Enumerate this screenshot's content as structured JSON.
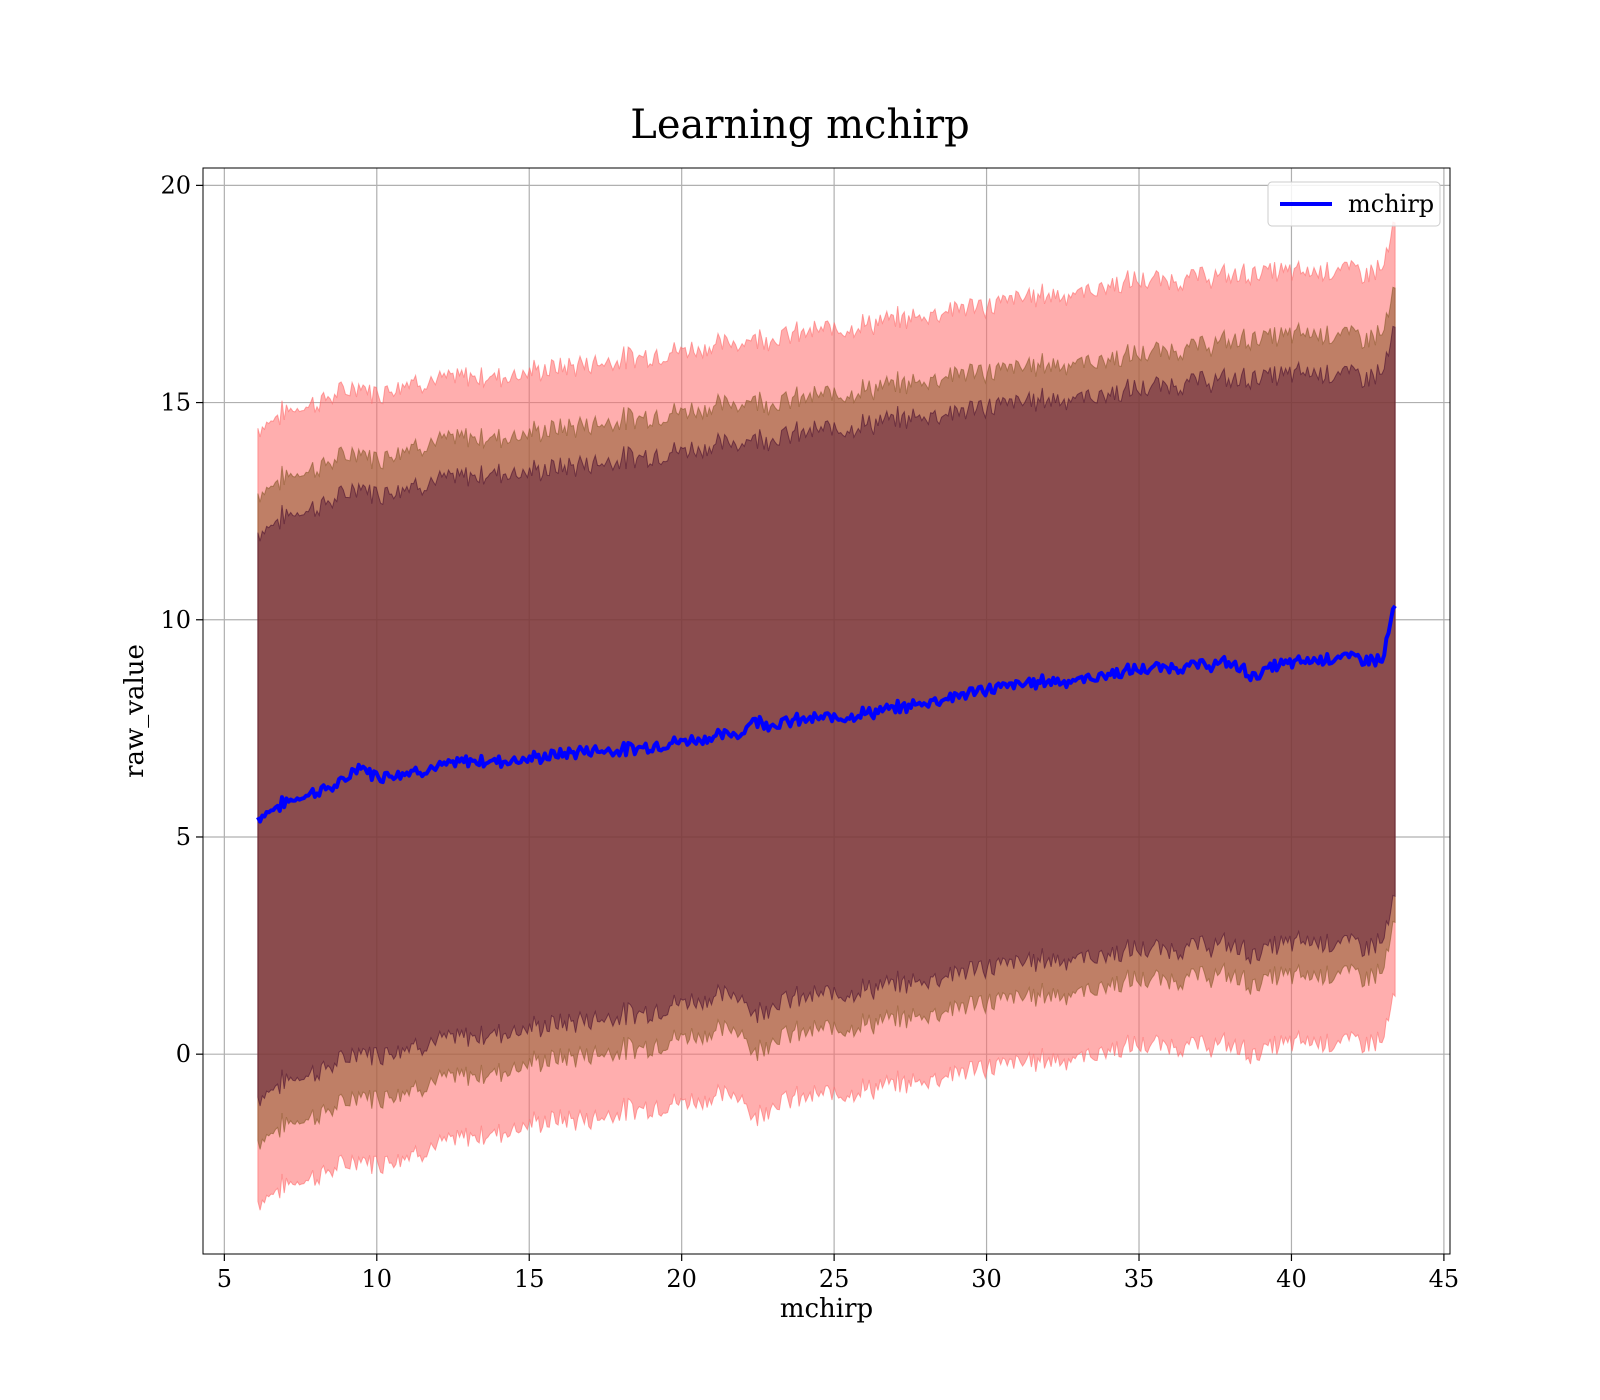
{
  "chart_data": {
    "type": "line",
    "title": "Learning mchirp",
    "xlabel": "mchirp",
    "ylabel": "raw_value",
    "xlim": [
      4.3,
      45.2
    ],
    "ylim": [
      -4.6,
      20.4
    ],
    "xticks": [
      5,
      10,
      15,
      20,
      25,
      30,
      35,
      40,
      45
    ],
    "yticks": [
      0,
      5,
      10,
      15,
      20
    ],
    "grid": true,
    "legend": {
      "position": "top-right",
      "entries": [
        "mchirp"
      ]
    },
    "colors": {
      "line": "#0000ff",
      "band_outer": "#ff6b6b",
      "band_middle": "#8b5a2b",
      "band_inner": "#4b1030"
    },
    "series": [
      {
        "name": "mchirp",
        "x": [
          6.1,
          7.0,
          8.0,
          8.8,
          9.4,
          10.0,
          11.0,
          12.0,
          13.0,
          14.0,
          15.0,
          16.0,
          17.0,
          18.0,
          19.0,
          20.0,
          21.0,
          22.0,
          22.3,
          23.0,
          24.0,
          25.0,
          26.0,
          27.0,
          28.0,
          29.0,
          30.0,
          31.0,
          32.0,
          33.0,
          34.0,
          35.0,
          36.0,
          37.0,
          38.0,
          38.8,
          39.5,
          40.5,
          41.5,
          42.5,
          43.0,
          43.2,
          43.4
        ],
        "y": [
          5.45,
          5.8,
          6.05,
          6.2,
          6.65,
          6.4,
          6.5,
          6.6,
          6.75,
          6.75,
          6.8,
          6.9,
          7.0,
          7.0,
          7.1,
          7.2,
          7.3,
          7.4,
          7.7,
          7.6,
          7.7,
          7.75,
          7.85,
          7.95,
          8.1,
          8.25,
          8.4,
          8.5,
          8.6,
          8.6,
          8.75,
          8.85,
          8.9,
          8.95,
          9.0,
          8.7,
          8.95,
          9.05,
          9.15,
          9.1,
          9.05,
          9.8,
          10.3
        ]
      }
    ],
    "bands": [
      {
        "level": "outer",
        "lower": [
          -3.4,
          -3.0,
          -2.8,
          -2.6,
          -2.4,
          -2.5,
          -2.3,
          -2.1,
          -1.9,
          -1.8,
          -1.6,
          -1.5,
          -1.5,
          -1.3,
          -1.2,
          -1.1,
          -1.0,
          -0.9,
          -1.5,
          -1.1,
          -1.0,
          -0.9,
          -0.8,
          -0.7,
          -0.6,
          -0.4,
          -0.3,
          -0.2,
          -0.1,
          -0.1,
          0.1,
          0.2,
          0.2,
          0.2,
          0.2,
          0.0,
          0.2,
          0.3,
          0.3,
          0.3,
          0.3,
          0.9,
          1.3
        ],
        "upper": [
          14.4,
          14.8,
          15.0,
          15.2,
          15.4,
          15.2,
          15.5,
          15.5,
          15.6,
          15.6,
          15.7,
          15.8,
          15.9,
          16.0,
          16.1,
          16.2,
          16.3,
          16.4,
          16.5,
          16.5,
          16.6,
          16.7,
          16.8,
          16.9,
          17.0,
          17.2,
          17.2,
          17.4,
          17.5,
          17.5,
          17.7,
          17.8,
          17.8,
          17.9,
          17.9,
          18.0,
          18.0,
          18.0,
          18.1,
          18.0,
          18.1,
          18.6,
          19.1
        ]
      },
      {
        "level": "middle",
        "lower": [
          -2.0,
          -1.6,
          -1.4,
          -1.2,
          -0.9,
          -1.0,
          -0.8,
          -0.6,
          -0.5,
          -0.4,
          -0.2,
          -0.1,
          0.0,
          0.1,
          0.2,
          0.4,
          0.5,
          0.6,
          0.0,
          0.4,
          0.5,
          0.6,
          0.7,
          0.8,
          0.9,
          1.1,
          1.2,
          1.3,
          1.4,
          1.4,
          1.6,
          1.7,
          1.7,
          1.8,
          1.8,
          1.6,
          1.8,
          1.8,
          1.9,
          1.8,
          1.9,
          2.5,
          3.0
        ],
        "upper": [
          12.9,
          13.3,
          13.5,
          13.7,
          13.9,
          13.7,
          14.0,
          14.1,
          14.2,
          14.2,
          14.3,
          14.4,
          14.5,
          14.6,
          14.7,
          14.8,
          14.9,
          15.0,
          15.1,
          15.0,
          15.1,
          15.2,
          15.3,
          15.4,
          15.5,
          15.7,
          15.7,
          15.8,
          15.9,
          15.9,
          16.0,
          16.1,
          16.2,
          16.3,
          16.4,
          16.5,
          16.5,
          16.6,
          16.6,
          16.5,
          16.6,
          17.1,
          17.6
        ]
      },
      {
        "level": "inner",
        "lower": [
          -1.0,
          -0.6,
          -0.4,
          -0.2,
          0.1,
          0.0,
          0.2,
          0.3,
          0.4,
          0.5,
          0.6,
          0.7,
          0.8,
          0.9,
          1.0,
          1.2,
          1.3,
          1.4,
          0.9,
          1.2,
          1.3,
          1.4,
          1.5,
          1.6,
          1.7,
          1.9,
          2.0,
          2.1,
          2.2,
          2.2,
          2.3,
          2.4,
          2.4,
          2.5,
          2.5,
          2.3,
          2.5,
          2.6,
          2.6,
          2.5,
          2.6,
          3.1,
          3.6
        ],
        "upper": [
          12.0,
          12.4,
          12.6,
          12.8,
          13.1,
          12.9,
          13.1,
          13.2,
          13.3,
          13.4,
          13.4,
          13.5,
          13.6,
          13.7,
          13.8,
          13.9,
          14.0,
          14.1,
          14.2,
          14.2,
          14.3,
          14.4,
          14.5,
          14.6,
          14.7,
          14.8,
          14.9,
          15.0,
          15.1,
          15.1,
          15.2,
          15.3,
          15.4,
          15.5,
          15.5,
          15.6,
          15.6,
          15.7,
          15.7,
          15.6,
          15.7,
          16.2,
          16.7
        ]
      }
    ]
  }
}
